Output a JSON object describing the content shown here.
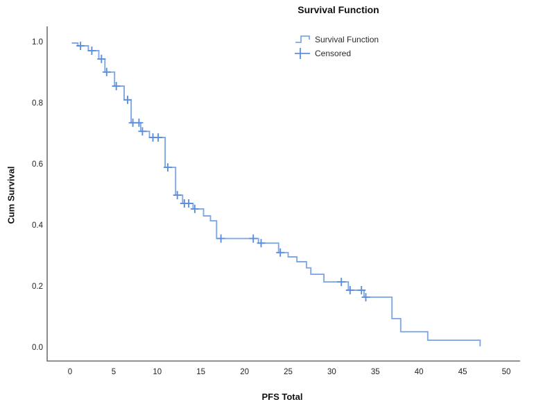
{
  "title": "Survival Function",
  "axes": {
    "x": {
      "label": "PFS Total",
      "ticks": [
        "0",
        "5",
        "10",
        "15",
        "20",
        "25",
        "30",
        "35",
        "40",
        "45",
        "50"
      ]
    },
    "y": {
      "label": "Cum Survival",
      "ticks": [
        "1.0",
        "0.8",
        "0.6",
        "0.4",
        "0.2",
        "0.0"
      ]
    }
  },
  "legend": {
    "items": [
      {
        "glyph": "step-line",
        "label": "Survival Function"
      },
      {
        "glyph": "plus",
        "label": "Censored"
      }
    ]
  },
  "colors": {
    "curve": "#7FA8E8",
    "censor": "#5B8FDE",
    "axis": "#6f6f6f",
    "text": "#1f1f1f"
  },
  "chart_data": {
    "type": "line",
    "subtype": "kaplan-meier-step-function",
    "title": "Survival Function",
    "xlabel": "PFS Total",
    "ylabel": "Cum Survival",
    "xticks": [
      0,
      5,
      10,
      15,
      20,
      25,
      30,
      35,
      40,
      45,
      50
    ],
    "yticks": [
      1.0,
      0.8,
      0.6,
      0.4,
      0.2,
      0.0
    ],
    "xlim": [
      -2.7,
      51.6
    ],
    "ylim": [
      -0.04,
      1.05
    ],
    "grid": false,
    "legend_position": "top-right-inside",
    "series_name": "Survival Function",
    "start": {
      "t": 0.2,
      "s": 1.0
    },
    "steps": [
      [
        0.9,
        0.991
      ],
      [
        2.1,
        0.975
      ],
      [
        3.3,
        0.948
      ],
      [
        4.0,
        0.905
      ],
      [
        5.1,
        0.859
      ],
      [
        6.2,
        0.814
      ],
      [
        7.0,
        0.739
      ],
      [
        8.1,
        0.711
      ],
      [
        9.1,
        0.691
      ],
      [
        10.9,
        0.593
      ],
      [
        12.1,
        0.502
      ],
      [
        12.9,
        0.475
      ],
      [
        14.1,
        0.457
      ],
      [
        15.3,
        0.434
      ],
      [
        16.1,
        0.418
      ],
      [
        16.8,
        0.36
      ],
      [
        21.6,
        0.345
      ],
      [
        23.9,
        0.314
      ],
      [
        25.0,
        0.3
      ],
      [
        26.0,
        0.284
      ],
      [
        27.1,
        0.264
      ],
      [
        27.6,
        0.243
      ],
      [
        29.1,
        0.218
      ],
      [
        31.9,
        0.191
      ],
      [
        33.7,
        0.168
      ],
      [
        36.9,
        0.098
      ],
      [
        37.9,
        0.055
      ],
      [
        41.0,
        0.027
      ],
      [
        47.0,
        0.007
      ]
    ],
    "censored": [
      [
        1.2,
        0.991
      ],
      [
        2.5,
        0.975
      ],
      [
        3.6,
        0.948
      ],
      [
        4.2,
        0.905
      ],
      [
        5.3,
        0.859
      ],
      [
        6.6,
        0.814
      ],
      [
        7.2,
        0.739
      ],
      [
        7.9,
        0.739
      ],
      [
        8.3,
        0.711
      ],
      [
        9.5,
        0.691
      ],
      [
        10.1,
        0.691
      ],
      [
        11.2,
        0.593
      ],
      [
        12.3,
        0.502
      ],
      [
        13.1,
        0.475
      ],
      [
        13.6,
        0.475
      ],
      [
        14.3,
        0.457
      ],
      [
        17.3,
        0.36
      ],
      [
        21.0,
        0.36
      ],
      [
        21.9,
        0.345
      ],
      [
        24.1,
        0.314
      ],
      [
        31.1,
        0.218
      ],
      [
        32.1,
        0.191
      ],
      [
        33.4,
        0.191
      ],
      [
        33.9,
        0.168
      ]
    ]
  }
}
